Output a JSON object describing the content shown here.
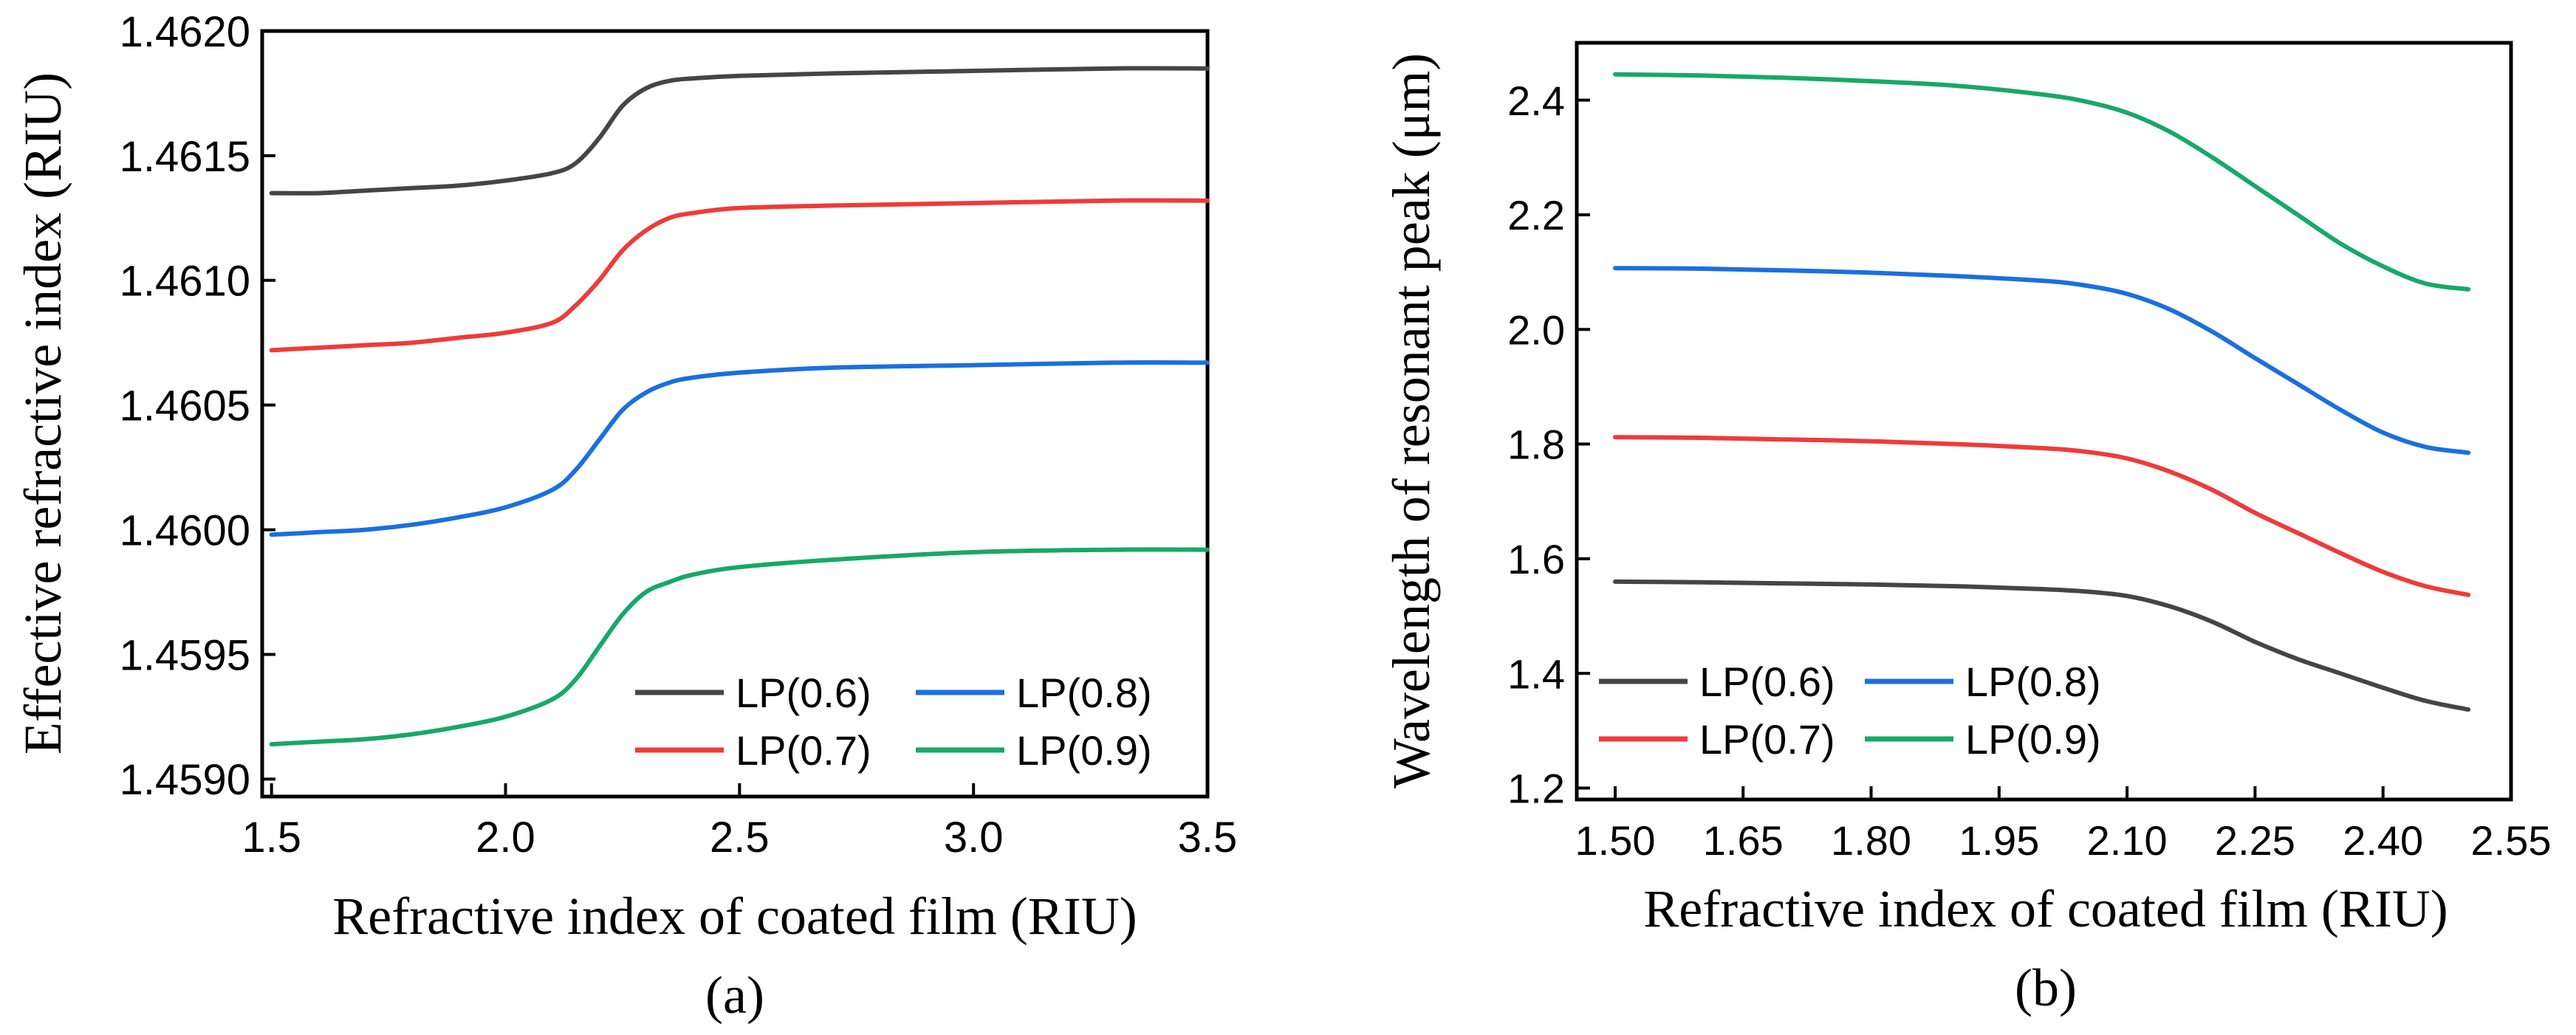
{
  "colors": {
    "LP(0.6)": "#454545",
    "LP(0.7)": "#f03a3a",
    "LP(0.8)": "#1a6fe0",
    "LP(0.9)": "#17a868"
  },
  "chart_data": [
    {
      "type": "line",
      "panel_label": "(a)",
      "xlabel": "Refractive index of coated film (RIU)",
      "ylabel": "Effective refractive index (RIU)",
      "xlim": [
        1.48,
        3.5
      ],
      "ylim": [
        1.45893,
        1.462
      ],
      "xticks": [
        1.5,
        2.0,
        2.5,
        3.0,
        3.5
      ],
      "xtick_labels": [
        "1.5",
        "2.0",
        "2.5",
        "3.0",
        "3.5"
      ],
      "yticks": [
        1.459,
        1.4595,
        1.46,
        1.4605,
        1.461,
        1.4615,
        1.462
      ],
      "ytick_labels": [
        "1.4590",
        "1.4595",
        "1.4600",
        "1.4605",
        "1.4610",
        "1.4615",
        "1.4620"
      ],
      "legend": {
        "placement": "bottom-right",
        "columns": 2,
        "order": [
          "LP(0.6)",
          "LP(0.8)",
          "LP(0.7)",
          "LP(0.9)"
        ]
      },
      "series": [
        {
          "name": "LP(0.6)",
          "x": [
            1.5,
            1.6,
            1.7,
            1.8,
            1.9,
            2.0,
            2.1,
            2.15,
            2.2,
            2.25,
            2.3,
            2.35,
            2.4,
            2.5,
            2.7,
            3.0,
            3.3,
            3.5
          ],
          "y": [
            1.46135,
            1.46135,
            1.46136,
            1.46137,
            1.46138,
            1.4614,
            1.46143,
            1.46147,
            1.46157,
            1.4617,
            1.46177,
            1.4618,
            1.46181,
            1.46182,
            1.46183,
            1.46184,
            1.46185,
            1.46185
          ]
        },
        {
          "name": "LP(0.7)",
          "x": [
            1.5,
            1.6,
            1.7,
            1.8,
            1.9,
            2.0,
            2.1,
            2.15,
            2.2,
            2.25,
            2.3,
            2.35,
            2.4,
            2.5,
            2.7,
            3.0,
            3.3,
            3.5
          ],
          "y": [
            1.46072,
            1.46073,
            1.46074,
            1.46075,
            1.46077,
            1.46079,
            1.46083,
            1.4609,
            1.461,
            1.46112,
            1.4612,
            1.46125,
            1.46127,
            1.46129,
            1.4613,
            1.46131,
            1.46132,
            1.46132
          ]
        },
        {
          "name": "LP(0.8)",
          "x": [
            1.5,
            1.6,
            1.7,
            1.8,
            1.9,
            2.0,
            2.1,
            2.15,
            2.2,
            2.25,
            2.3,
            2.35,
            2.4,
            2.5,
            2.7,
            3.0,
            3.3,
            3.5
          ],
          "y": [
            1.45998,
            1.45999,
            1.46,
            1.46002,
            1.46005,
            1.46009,
            1.46016,
            1.46024,
            1.46036,
            1.46048,
            1.46055,
            1.46059,
            1.46061,
            1.46063,
            1.46065,
            1.46066,
            1.46067,
            1.46067
          ]
        },
        {
          "name": "LP(0.9)",
          "x": [
            1.5,
            1.6,
            1.7,
            1.8,
            1.9,
            2.0,
            2.1,
            2.15,
            2.2,
            2.25,
            2.3,
            2.35,
            2.4,
            2.5,
            2.7,
            3.0,
            3.3,
            3.5
          ],
          "y": [
            1.45914,
            1.45915,
            1.45916,
            1.45918,
            1.45921,
            1.45925,
            1.45932,
            1.4594,
            1.45953,
            1.45966,
            1.45975,
            1.45979,
            1.45982,
            1.45985,
            1.45988,
            1.45991,
            1.45992,
            1.45992
          ]
        }
      ]
    },
    {
      "type": "line",
      "panel_label": "(b)",
      "xlabel": "Refractive index of coated film (RIU)",
      "ylabel": "Wavelength of resonant peak (μm)",
      "xlim": [
        1.455,
        2.55
      ],
      "ylim": [
        1.18,
        2.5
      ],
      "xticks": [
        1.5,
        1.65,
        1.8,
        1.95,
        2.1,
        2.25,
        2.4,
        2.55
      ],
      "xtick_labels": [
        "1.50",
        "1.65",
        "1.80",
        "1.95",
        "2.10",
        "2.25",
        "2.40",
        "2.55"
      ],
      "yticks": [
        1.2,
        1.4,
        1.6,
        1.8,
        2.0,
        2.2,
        2.4
      ],
      "ytick_labels": [
        "1.2",
        "1.4",
        "1.6",
        "1.8",
        "2.0",
        "2.2",
        "2.4"
      ],
      "legend": {
        "placement": "bottom-left",
        "columns": 2,
        "order": [
          "LP(0.6)",
          "LP(0.8)",
          "LP(0.7)",
          "LP(0.9)"
        ]
      },
      "series": [
        {
          "name": "LP(0.6)",
          "x": [
            1.5,
            1.6,
            1.7,
            1.8,
            1.9,
            2.0,
            2.05,
            2.1,
            2.15,
            2.2,
            2.25,
            2.3,
            2.35,
            2.4,
            2.45,
            2.5
          ],
          "y": [
            1.56,
            1.559,
            1.557,
            1.555,
            1.552,
            1.547,
            1.543,
            1.535,
            1.517,
            1.49,
            1.455,
            1.425,
            1.4,
            1.375,
            1.352,
            1.337
          ]
        },
        {
          "name": "LP(0.7)",
          "x": [
            1.5,
            1.6,
            1.7,
            1.8,
            1.9,
            2.0,
            2.05,
            2.1,
            2.15,
            2.2,
            2.25,
            2.3,
            2.35,
            2.4,
            2.45,
            2.5
          ],
          "y": [
            1.812,
            1.811,
            1.808,
            1.805,
            1.8,
            1.793,
            1.787,
            1.775,
            1.752,
            1.72,
            1.68,
            1.645,
            1.61,
            1.577,
            1.552,
            1.537
          ]
        },
        {
          "name": "LP(0.8)",
          "x": [
            1.5,
            1.6,
            1.7,
            1.8,
            1.9,
            2.0,
            2.05,
            2.1,
            2.15,
            2.2,
            2.25,
            2.3,
            2.35,
            2.4,
            2.45,
            2.5
          ],
          "y": [
            2.107,
            2.106,
            2.103,
            2.099,
            2.093,
            2.085,
            2.077,
            2.062,
            2.035,
            1.996,
            1.95,
            1.905,
            1.86,
            1.82,
            1.795,
            1.785
          ]
        },
        {
          "name": "LP(0.9)",
          "x": [
            1.5,
            1.6,
            1.7,
            1.8,
            1.9,
            2.0,
            2.05,
            2.1,
            2.15,
            2.2,
            2.25,
            2.3,
            2.35,
            2.4,
            2.45,
            2.5
          ],
          "y": [
            2.445,
            2.443,
            2.439,
            2.433,
            2.425,
            2.41,
            2.398,
            2.378,
            2.345,
            2.3,
            2.25,
            2.2,
            2.15,
            2.11,
            2.08,
            2.07
          ]
        }
      ]
    }
  ]
}
